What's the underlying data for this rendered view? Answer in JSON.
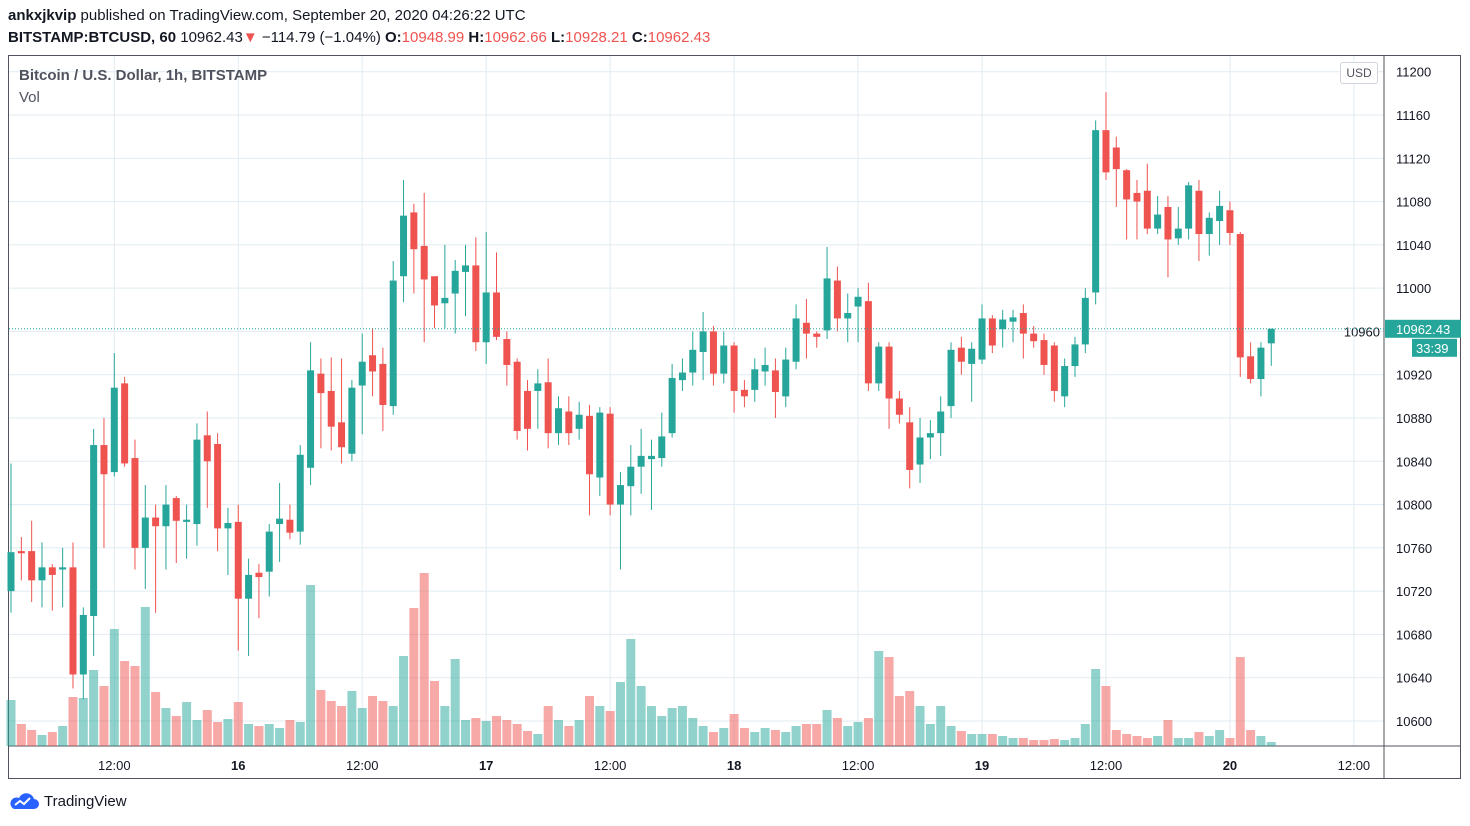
{
  "header": {
    "author": "ankxjkvip",
    "published": "published on TradingView.com, September 20, 2020 04:26:22 UTC",
    "symbol": "BITSTAMP:BTCUSD, 60",
    "last": "10962.43",
    "change": "−114.79 (−1.04%)",
    "o_label": "O:",
    "o": "10948.99",
    "h_label": "H:",
    "h": "10962.66",
    "l_label": "L:",
    "l": "10928.21",
    "c_label": "C:",
    "c": "10962.43"
  },
  "legend": {
    "title": "Bitcoin / U.S. Dollar, 1h, BITSTAMP",
    "vol": "Vol"
  },
  "currency_button": "USD",
  "price_label": "10962.43",
  "countdown": "33:39",
  "brand": "TradingView",
  "colors": {
    "up": "#26a69a",
    "down": "#ef5350",
    "grid": "#e1ecf2",
    "text": "#131722"
  },
  "chart_data": {
    "type": "candlestick",
    "interval": "1h",
    "price_ticks": [
      10600,
      10640,
      10680,
      10720,
      10760,
      10800,
      10840,
      10880,
      10920,
      10960,
      11000,
      11040,
      11080,
      11120,
      11160,
      11200
    ],
    "time_ticks": [
      "12:00",
      "16",
      "12:00",
      "17",
      "12:00",
      "18",
      "12:00",
      "19",
      "12:00",
      "20",
      "12:00"
    ],
    "ylim": [
      10585,
      11200
    ],
    "grid": true,
    "last_price": 10962.43,
    "candles_fields": [
      "time",
      "open",
      "high",
      "low",
      "close",
      "volume"
    ],
    "candles": [
      [
        "2020-09-15 02:00",
        10720,
        10838,
        10700,
        10756,
        46
      ],
      [
        "2020-09-15 03:00",
        10757,
        10770,
        10730,
        10755,
        22
      ],
      [
        "2020-09-15 04:00",
        10757,
        10785,
        10710,
        10730,
        16
      ],
      [
        "2020-09-15 05:00",
        10730,
        10765,
        10705,
        10742,
        11
      ],
      [
        "2020-09-15 06:00",
        10742,
        10745,
        10702,
        10735,
        14
      ],
      [
        "2020-09-15 07:00",
        10740,
        10760,
        10705,
        10742,
        20
      ],
      [
        "2020-09-15 08:00",
        10742,
        10765,
        10630,
        10643,
        49
      ],
      [
        "2020-09-15 09:00",
        10643,
        10705,
        10620,
        10698,
        48
      ],
      [
        "2020-09-15 10:00",
        10697,
        10870,
        10660,
        10855,
        76
      ],
      [
        "2020-09-15 11:00",
        10855,
        10880,
        10760,
        10828,
        60
      ],
      [
        "2020-09-15 12:00",
        10830,
        10940,
        10826,
        10908,
        117
      ],
      [
        "2020-09-15 13:00",
        10912,
        10918,
        10835,
        10838,
        85
      ],
      [
        "2020-09-15 14:00",
        10843,
        10860,
        10740,
        10760,
        80
      ],
      [
        "2020-09-15 15:00",
        10760,
        10818,
        10722,
        10788,
        139
      ],
      [
        "2020-09-15 16:00",
        10788,
        10800,
        10700,
        10780,
        54
      ],
      [
        "2020-09-15 17:00",
        10780,
        10818,
        10740,
        10800,
        38
      ],
      [
        "2020-09-15 18:00",
        10806,
        10808,
        10746,
        10785,
        30
      ],
      [
        "2020-09-15 19:00",
        10784,
        10800,
        10750,
        10786,
        44
      ],
      [
        "2020-09-15 20:00",
        10782,
        10875,
        10762,
        10860,
        26
      ],
      [
        "2020-09-15 21:00",
        10864,
        10886,
        10797,
        10840,
        36
      ],
      [
        "2020-09-15 22:00",
        10856,
        10866,
        10757,
        10778,
        24
      ],
      [
        "2020-09-15 23:00",
        10778,
        10797,
        10735,
        10783,
        27
      ],
      [
        "2020-09-16 00:00",
        10784,
        10800,
        10665,
        10713,
        44
      ],
      [
        "2020-09-16 01:00",
        10713,
        10750,
        10660,
        10735,
        22
      ],
      [
        "2020-09-16 02:00",
        10737,
        10745,
        10695,
        10733,
        20
      ],
      [
        "2020-09-16 03:00",
        10738,
        10782,
        10715,
        10775,
        22
      ],
      [
        "2020-09-16 04:00",
        10782,
        10820,
        10747,
        10787,
        18
      ],
      [
        "2020-09-16 05:00",
        10786,
        10800,
        10768,
        10774,
        26
      ],
      [
        "2020-09-16 06:00",
        10775,
        10855,
        10763,
        10846,
        24
      ],
      [
        "2020-09-16 07:00",
        10834,
        10950,
        10818,
        10924,
        161
      ],
      [
        "2020-09-16 08:00",
        10921,
        10935,
        10852,
        10903,
        56
      ],
      [
        "2020-09-16 09:00",
        10905,
        10936,
        10850,
        10872,
        45
      ],
      [
        "2020-09-16 10:00",
        10876,
        10935,
        10838,
        10853,
        40
      ],
      [
        "2020-09-16 11:00",
        10847,
        10915,
        10840,
        10908,
        55
      ],
      [
        "2020-09-16 12:00",
        10910,
        10958,
        10865,
        10932,
        38
      ],
      [
        "2020-09-16 13:00",
        10938,
        10963,
        10900,
        10923,
        50
      ],
      [
        "2020-09-16 14:00",
        10930,
        10945,
        10868,
        10892,
        45
      ],
      [
        "2020-09-16 15:00",
        10891,
        11025,
        10883,
        11007,
        40
      ],
      [
        "2020-09-16 16:00",
        11011,
        11100,
        10987,
        11067,
        90
      ],
      [
        "2020-09-16 17:00",
        11070,
        11078,
        10995,
        11036,
        138
      ],
      [
        "2020-09-16 18:00",
        11039,
        11088,
        10950,
        11008,
        173
      ],
      [
        "2020-09-16 19:00",
        11011,
        11010,
        10963,
        10984,
        65
      ],
      [
        "2020-09-16 20:00",
        10986,
        11040,
        10963,
        10991,
        40
      ],
      [
        "2020-09-16 21:00",
        10995,
        11026,
        10958,
        11016,
        87
      ],
      [
        "2020-09-16 22:00",
        11015,
        11040,
        10974,
        11021,
        26
      ],
      [
        "2020-09-16 23:00",
        11021,
        11047,
        10942,
        10950,
        28
      ],
      [
        "2020-09-17 00:00",
        10950,
        11052,
        10930,
        10996,
        25
      ],
      [
        "2020-09-17 01:00",
        10996,
        11033,
        10952,
        10955,
        30
      ],
      [
        "2020-09-17 02:00",
        10953,
        10960,
        10910,
        10929,
        26
      ],
      [
        "2020-09-17 03:00",
        10932,
        10935,
        10860,
        10868,
        22
      ],
      [
        "2020-09-17 04:00",
        10905,
        10915,
        10850,
        10870,
        15
      ],
      [
        "2020-09-17 05:00",
        10905,
        10925,
        10870,
        10912,
        12
      ],
      [
        "2020-09-17 06:00",
        10913,
        10935,
        10852,
        10866,
        40
      ],
      [
        "2020-09-17 07:00",
        10866,
        10900,
        10855,
        10889,
        26
      ],
      [
        "2020-09-17 08:00",
        10886,
        10900,
        10855,
        10866,
        20
      ],
      [
        "2020-09-17 09:00",
        10870,
        10895,
        10860,
        10883,
        26
      ],
      [
        "2020-09-17 10:00",
        10882,
        10892,
        10790,
        10828,
        50
      ],
      [
        "2020-09-17 11:00",
        10825,
        10890,
        10808,
        10885,
        40
      ],
      [
        "2020-09-17 12:00",
        10884,
        10890,
        10790,
        10800,
        35
      ],
      [
        "2020-09-17 13:00",
        10800,
        10830,
        10740,
        10818,
        64
      ],
      [
        "2020-09-17 14:00",
        10817,
        10855,
        10790,
        10835,
        107
      ],
      [
        "2020-09-17 15:00",
        10835,
        10870,
        10810,
        10845,
        60
      ],
      [
        "2020-09-17 16:00",
        10842,
        10860,
        10795,
        10845,
        40
      ],
      [
        "2020-09-17 17:00",
        10843,
        10885,
        10835,
        10863,
        30
      ],
      [
        "2020-09-17 18:00",
        10866,
        10930,
        10862,
        10917,
        38
      ],
      [
        "2020-09-17 19:00",
        10915,
        10935,
        10905,
        10922,
        40
      ],
      [
        "2020-09-17 20:00",
        10922,
        10960,
        10910,
        10943,
        28
      ],
      [
        "2020-09-17 21:00",
        10941,
        10978,
        10915,
        10960,
        20
      ],
      [
        "2020-09-17 22:00",
        10960,
        10965,
        10910,
        10921,
        14
      ],
      [
        "2020-09-17 23:00",
        10921,
        10960,
        10912,
        10947,
        18
      ],
      [
        "2020-09-18 00:00",
        10947,
        10950,
        10885,
        10905,
        32
      ],
      [
        "2020-09-18 01:00",
        10906,
        10915,
        10890,
        10900,
        18
      ],
      [
        "2020-09-18 02:00",
        10906,
        10935,
        10895,
        10925,
        14
      ],
      [
        "2020-09-18 03:00",
        10923,
        10945,
        10910,
        10929,
        18
      ],
      [
        "2020-09-18 04:00",
        10924,
        10935,
        10880,
        10904,
        16
      ],
      [
        "2020-09-18 05:00",
        10900,
        10945,
        10890,
        10934,
        14
      ],
      [
        "2020-09-18 06:00",
        10932,
        10985,
        10925,
        10972,
        20
      ],
      [
        "2020-09-18 07:00",
        10968,
        10990,
        10935,
        10958,
        22
      ],
      [
        "2020-09-18 08:00",
        10958,
        10960,
        10945,
        10955,
        22
      ],
      [
        "2020-09-18 09:00",
        10961,
        11038,
        10953,
        11009,
        36
      ],
      [
        "2020-09-18 10:00",
        11007,
        11020,
        10960,
        10972,
        28
      ],
      [
        "2020-09-18 11:00",
        10972,
        10995,
        10950,
        10977,
        20
      ],
      [
        "2020-09-18 12:00",
        10983,
        11000,
        10950,
        10992,
        24
      ],
      [
        "2020-09-18 13:00",
        10988,
        11005,
        10905,
        10912,
        28
      ],
      [
        "2020-09-18 14:00",
        10912,
        10950,
        10905,
        10946,
        95
      ],
      [
        "2020-09-18 15:00",
        10946,
        10950,
        10870,
        10898,
        89
      ],
      [
        "2020-09-18 16:00",
        10898,
        10905,
        10875,
        10883,
        50
      ],
      [
        "2020-09-18 17:00",
        10876,
        10890,
        10815,
        10832,
        55
      ],
      [
        "2020-09-18 18:00",
        10837,
        10880,
        10820,
        10862,
        40
      ],
      [
        "2020-09-18 19:00",
        10862,
        10878,
        10842,
        10866,
        22
      ],
      [
        "2020-09-18 20:00",
        10866,
        10900,
        10845,
        10886,
        40
      ],
      [
        "2020-09-18 21:00",
        10891,
        10950,
        10880,
        10943,
        20
      ],
      [
        "2020-09-18 22:00",
        10945,
        10955,
        10920,
        10932,
        15
      ],
      [
        "2020-09-18 23:00",
        10930,
        10950,
        10895,
        10944,
        12
      ],
      [
        "2020-09-19 00:00",
        10934,
        10985,
        10930,
        10972,
        12
      ],
      [
        "2020-09-19 01:00",
        10972,
        10975,
        10940,
        10947,
        12
      ],
      [
        "2020-09-19 02:00",
        10962,
        10980,
        10945,
        10971,
        10
      ],
      [
        "2020-09-19 03:00",
        10969,
        10980,
        10950,
        10973,
        8
      ],
      [
        "2020-09-19 04:00",
        10977,
        10985,
        10935,
        10958,
        8
      ],
      [
        "2020-09-19 05:00",
        10958,
        10965,
        10945,
        10951,
        6
      ],
      [
        "2020-09-19 06:00",
        10952,
        10958,
        10920,
        10929,
        6
      ],
      [
        "2020-09-19 07:00",
        10947,
        10950,
        10895,
        10905,
        7
      ],
      [
        "2020-09-19 08:00",
        10900,
        10935,
        10890,
        10928,
        6
      ],
      [
        "2020-09-19 09:00",
        10928,
        10955,
        10918,
        10948,
        8
      ],
      [
        "2020-09-19 10:00",
        10948,
        11000,
        10940,
        10991,
        22
      ],
      [
        "2020-09-19 11:00",
        10996,
        11155,
        10985,
        11146,
        77
      ],
      [
        "2020-09-19 12:00",
        11146,
        11181,
        11100,
        11107,
        60
      ],
      [
        "2020-09-19 13:00",
        11130,
        11140,
        11075,
        11110,
        16
      ],
      [
        "2020-09-19 14:00",
        11109,
        11110,
        11045,
        11082,
        12
      ],
      [
        "2020-09-19 15:00",
        11088,
        11100,
        11045,
        11080,
        10
      ],
      [
        "2020-09-19 16:00",
        11090,
        11115,
        11050,
        11055,
        8
      ],
      [
        "2020-09-19 17:00",
        11055,
        11085,
        11050,
        11068,
        10
      ],
      [
        "2020-09-19 18:00",
        11075,
        11085,
        11010,
        11045,
        26
      ],
      [
        "2020-09-19 19:00",
        11046,
        11075,
        11040,
        11055,
        8
      ],
      [
        "2020-09-19 20:00",
        11055,
        11098,
        11045,
        11095,
        8
      ],
      [
        "2020-09-19 21:00",
        11090,
        11100,
        11025,
        11050,
        14
      ],
      [
        "2020-09-19 22:00",
        11050,
        11070,
        11030,
        11065,
        10
      ],
      [
        "2020-09-19 23:00",
        11062,
        11090,
        11040,
        11076,
        16
      ],
      [
        "2020-09-20 00:00",
        11072,
        11080,
        11040,
        11051,
        8
      ],
      [
        "2020-09-20 01:00",
        11050,
        11052,
        10918,
        10936,
        89
      ],
      [
        "2020-09-20 02:00",
        10937,
        10950,
        10912,
        10916,
        16
      ],
      [
        "2020-09-20 03:00",
        10916,
        10950,
        10900,
        10945,
        10
      ],
      [
        "2020-09-20 04:00",
        10948.99,
        10962.66,
        10928.21,
        10962.43,
        4
      ]
    ]
  }
}
